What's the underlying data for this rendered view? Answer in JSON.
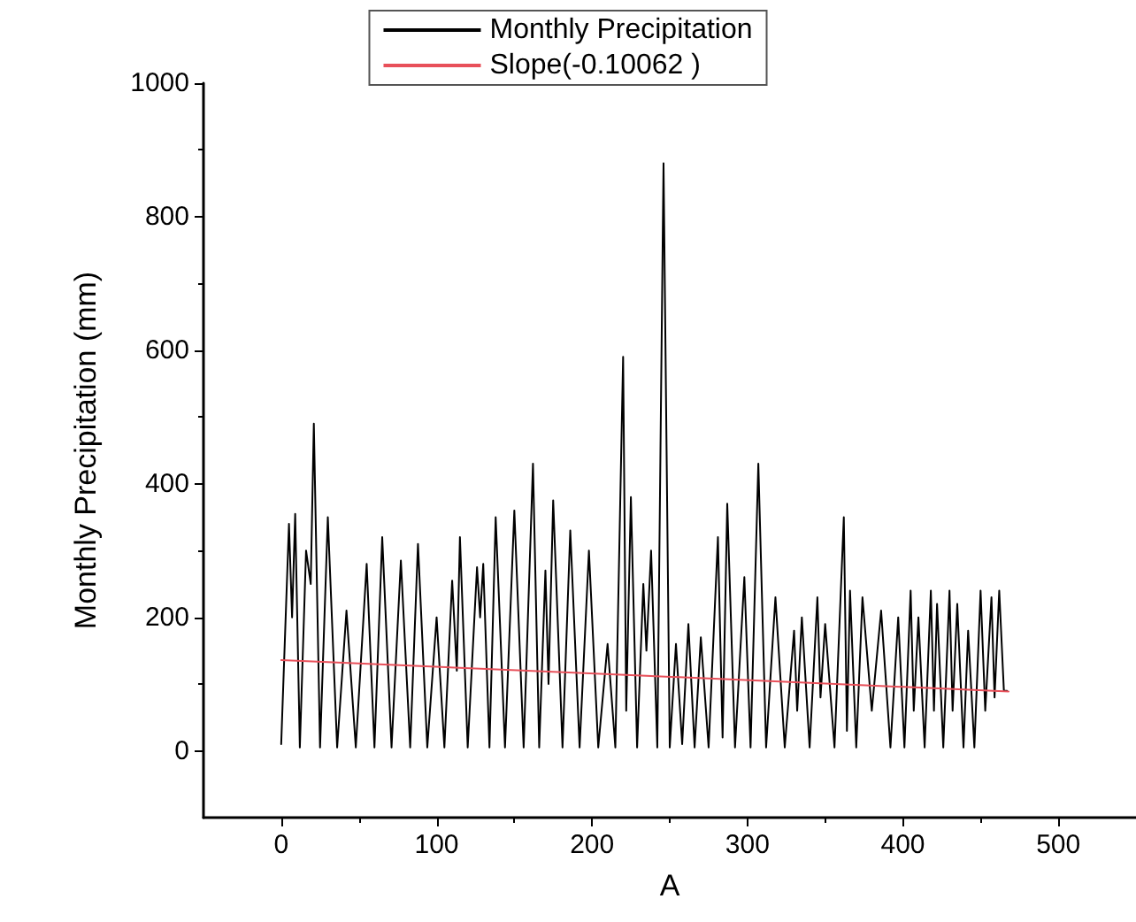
{
  "chart_data": {
    "type": "line",
    "xlabel": "A",
    "ylabel": "Monthly Precipitation (mm)",
    "xlim": [
      -50,
      550
    ],
    "xticks": [
      0,
      100,
      200,
      300,
      400,
      500
    ],
    "ylim": [
      -100,
      1000
    ],
    "yticks": [
      0,
      200,
      400,
      600,
      800,
      1000
    ],
    "grid": false,
    "legend": "top",
    "marker": "none",
    "line_style": "solid",
    "series": [
      {
        "name": "Monthly Precipitation",
        "color": "#000000",
        "x": [
          0,
          5,
          7,
          9,
          12,
          16,
          19,
          21,
          25,
          30,
          36,
          42,
          48,
          55,
          60,
          65,
          71,
          77,
          83,
          88,
          94,
          100,
          105,
          110,
          113,
          115,
          120,
          126,
          128,
          130,
          134,
          138,
          144,
          150,
          156,
          162,
          166,
          170,
          172,
          175,
          181,
          186,
          192,
          198,
          204,
          210,
          215,
          220,
          222,
          225,
          229,
          233,
          235,
          238,
          242,
          246,
          250,
          254,
          258,
          262,
          266,
          270,
          275,
          281,
          284,
          287,
          292,
          298,
          302,
          307,
          312,
          318,
          324,
          330,
          332,
          335,
          340,
          345,
          347,
          350,
          356,
          362,
          364,
          366,
          370,
          374,
          380,
          386,
          392,
          397,
          401,
          405,
          407,
          410,
          414,
          418,
          420,
          422,
          426,
          430,
          432,
          435,
          439,
          442,
          446,
          450,
          453,
          457,
          459,
          462,
          465,
          467
        ],
        "values": [
          10,
          340,
          200,
          355,
          5,
          300,
          250,
          490,
          5,
          350,
          5,
          210,
          5,
          280,
          5,
          320,
          5,
          285,
          5,
          310,
          5,
          200,
          5,
          255,
          120,
          320,
          5,
          275,
          200,
          280,
          5,
          350,
          5,
          360,
          5,
          430,
          5,
          270,
          100,
          375,
          5,
          330,
          5,
          300,
          5,
          160,
          5,
          590,
          60,
          380,
          5,
          250,
          150,
          300,
          5,
          880,
          5,
          160,
          10,
          190,
          5,
          170,
          5,
          320,
          20,
          370,
          5,
          260,
          5,
          430,
          5,
          230,
          5,
          180,
          60,
          200,
          5,
          230,
          80,
          190,
          5,
          350,
          30,
          240,
          5,
          230,
          60,
          210,
          5,
          200,
          5,
          240,
          60,
          200,
          5,
          240,
          60,
          220,
          5,
          240,
          60,
          220,
          5,
          180,
          5,
          240,
          60,
          230,
          80,
          240,
          90,
          90
        ]
      },
      {
        "name": "Slope(-0.10062 )",
        "color": "#e8505a",
        "x": [
          0,
          468
        ],
        "values": [
          136,
          89
        ]
      }
    ]
  }
}
